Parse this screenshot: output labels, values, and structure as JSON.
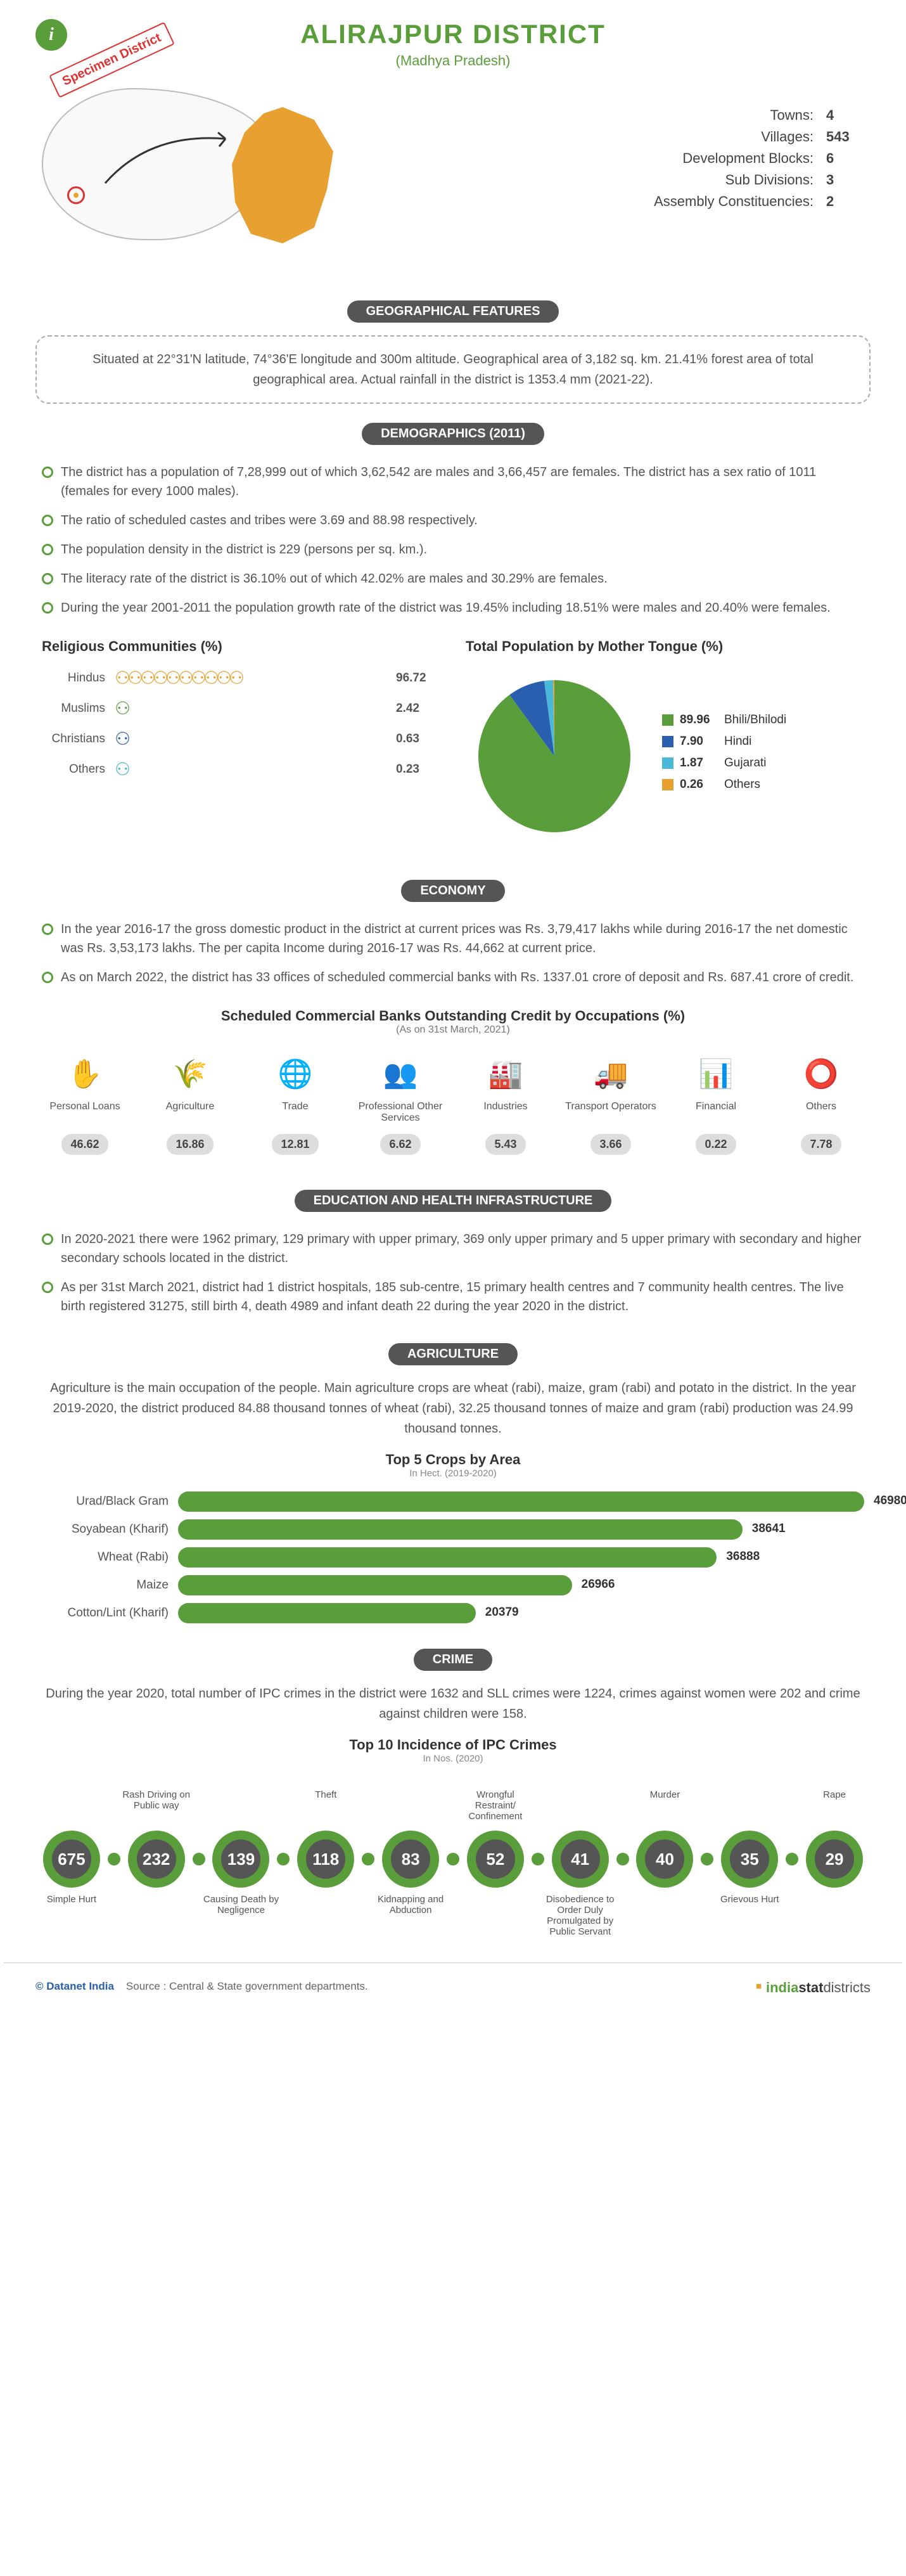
{
  "header": {
    "title": "ALIRAJPUR DISTRICT",
    "subtitle": "(Madhya Pradesh)",
    "specimen": "Specimen District",
    "info_icon": "i"
  },
  "basic_stats": [
    {
      "label": "Towns",
      "value": "4"
    },
    {
      "label": "Villages",
      "value": "543"
    },
    {
      "label": "Development Blocks",
      "value": "6"
    },
    {
      "label": "Sub Divisions",
      "value": "3"
    },
    {
      "label": "Assembly Constituencies",
      "value": "2"
    }
  ],
  "map": {
    "district_color": "#e8a030",
    "outline_color": "#bbbbbb",
    "marker_color": "#d33333"
  },
  "sections": {
    "geo": {
      "badge": "GEOGRAPHICAL FEATURES",
      "text": "Situated at 22°31'N latitude, 74°36'E longitude and 300m altitude. Geographical area of 3,182 sq. km. 21.41% forest area of total geographical area. Actual rainfall in the district is 1353.4 mm (2021-22)."
    },
    "demo": {
      "badge": "DEMOGRAPHICS (2011)",
      "bullets": [
        "The district has a population of 7,28,999 out of which 3,62,542 are males and 3,66,457 are females. The district has a sex ratio of 1011 (females for every 1000 males).",
        "The ratio of scheduled castes and tribes were 3.69 and 88.98 respectively.",
        "The population density in the district is 229 (persons per sq. km.).",
        "The literacy rate of the district is 36.10% out of which 42.02% are males and 30.29% are females.",
        "During the year 2001-2011 the population growth rate of the district was 19.45% including 18.51% were males and 20.40% were females."
      ]
    },
    "econ": {
      "badge": "ECONOMY",
      "bullets": [
        "In the year 2016-17 the gross domestic product in the district at current prices was Rs. 3,79,417 lakhs while during 2016-17 the net domestic was Rs. 3,53,173 lakhs. The per capita Income during 2016-17 was Rs. 44,662 at current price.",
        "As on March 2022, the district has 33 offices of scheduled commercial banks with Rs. 1337.01 crore of deposit and Rs. 687.41 crore of credit."
      ]
    },
    "edu": {
      "badge": "EDUCATION AND HEALTH INFRASTRUCTURE",
      "bullets": [
        "In 2020-2021 there were 1962 primary, 129 primary with upper primary, 369 only upper primary and 5 upper primary with secondary and higher secondary schools located in the district.",
        "As per 31st March 2021, district had 1 district hospitals, 185 sub-centre, 15 primary health centres and 7 community health centres. The live birth registered 31275, still birth 4, death 4989 and infant death 22 during the year 2020 in the district."
      ]
    },
    "agri": {
      "badge": "AGRICULTURE",
      "text": "Agriculture is the main occupation of the people. Main agriculture crops are wheat (rabi), maize, gram (rabi) and potato in the district. In the year 2019-2020, the district produced 84.88 thousand tonnes of wheat (rabi), 32.25 thousand tonnes of maize and gram (rabi) production was 24.99 thousand tonnes."
    },
    "crime": {
      "badge": "CRIME",
      "text": "During the year 2020, total number of IPC crimes in the district were 1632 and SLL crimes were 1224, crimes against women were 202 and crime against children were 158."
    }
  },
  "religious": {
    "title": "Religious Communities (%)",
    "max_icons": 10,
    "colors": {
      "Hindus": "#e8a030",
      "Muslims": "#5a9e3c",
      "Christians": "#2a5fb0",
      "Others": "#4ab8d8"
    },
    "items": [
      {
        "label": "Hindus",
        "value": "96.72",
        "icons": 10
      },
      {
        "label": "Muslims",
        "value": "2.42",
        "icons": 1
      },
      {
        "label": "Christians",
        "value": "0.63",
        "icons": 1
      },
      {
        "label": "Others",
        "value": "0.23",
        "icons": 1
      }
    ]
  },
  "mother_tongue": {
    "title": "Total Population by Mother Tongue (%)",
    "type": "pie",
    "radius": 120,
    "items": [
      {
        "label": "Bhili/Bhilodi",
        "value": 89.96,
        "color": "#5a9e3c"
      },
      {
        "label": "Hindi",
        "value": 7.9,
        "color": "#2a5fb0"
      },
      {
        "label": "Gujarati",
        "value": 1.87,
        "color": "#4ab8d8"
      },
      {
        "label": "Others",
        "value": 0.26,
        "color": "#e8a030"
      }
    ]
  },
  "credit": {
    "title": "Scheduled Commercial Banks Outstanding Credit by Occupations (%)",
    "subtitle": "(As on 31st March, 2021)",
    "icon_color": "#5a9e3c",
    "pill_bg": "#dddddd",
    "items": [
      {
        "label": "Personal Loans",
        "value": "46.62",
        "icon": "✋"
      },
      {
        "label": "Agriculture",
        "value": "16.86",
        "icon": "🌾"
      },
      {
        "label": "Trade",
        "value": "12.81",
        "icon": "🌐"
      },
      {
        "label": "Professional Other Services",
        "value": "6.62",
        "icon": "👥"
      },
      {
        "label": "Industries",
        "value": "5.43",
        "icon": "🏭"
      },
      {
        "label": "Transport Operators",
        "value": "3.66",
        "icon": "🚚"
      },
      {
        "label": "Financial",
        "value": "0.22",
        "icon": "📊"
      },
      {
        "label": "Others",
        "value": "7.78",
        "icon": "⭕"
      }
    ]
  },
  "crops": {
    "title": "Top 5 Crops by Area",
    "subtitle": "In Hect. (2019-2020)",
    "bar_color": "#5a9e3c",
    "max_value": 46980,
    "items": [
      {
        "label": "Urad/Black Gram",
        "value": 46980
      },
      {
        "label": "Soyabean (Kharif)",
        "value": 38641
      },
      {
        "label": "Wheat (Rabi)",
        "value": 36888
      },
      {
        "label": "Maize",
        "value": 26966
      },
      {
        "label": "Cotton/Lint (Kharif)",
        "value": 20379
      }
    ]
  },
  "crime_chart": {
    "title": "Top 10 Incidence of IPC Crimes",
    "subtitle": "In Nos. (2020)",
    "ring_color": "#5a9e3c",
    "fill_color": "#555555",
    "items": [
      {
        "top": "",
        "bottom": "Simple Hurt",
        "value": "675"
      },
      {
        "top": "Rash Driving on Public way",
        "bottom": "",
        "value": "232"
      },
      {
        "top": "",
        "bottom": "Causing Death by Negligence",
        "value": "139"
      },
      {
        "top": "Theft",
        "bottom": "",
        "value": "118"
      },
      {
        "top": "",
        "bottom": "Kidnapping and Abduction",
        "value": "83"
      },
      {
        "top": "Wrongful Restraint/ Confinement",
        "bottom": "",
        "value": "52"
      },
      {
        "top": "",
        "bottom": "Disobedience to Order Duly Promulgated by Public Servant",
        "value": "41"
      },
      {
        "top": "Murder",
        "bottom": "",
        "value": "40"
      },
      {
        "top": "",
        "bottom": "Grievous Hurt",
        "value": "35"
      },
      {
        "top": "Rape",
        "bottom": "",
        "value": "29"
      }
    ]
  },
  "footer": {
    "copyright": "© Datanet India",
    "source": "Source : Central & State government departments.",
    "logo_india": "india",
    "logo_stat": "stat",
    "logo_suffix": "districts"
  }
}
